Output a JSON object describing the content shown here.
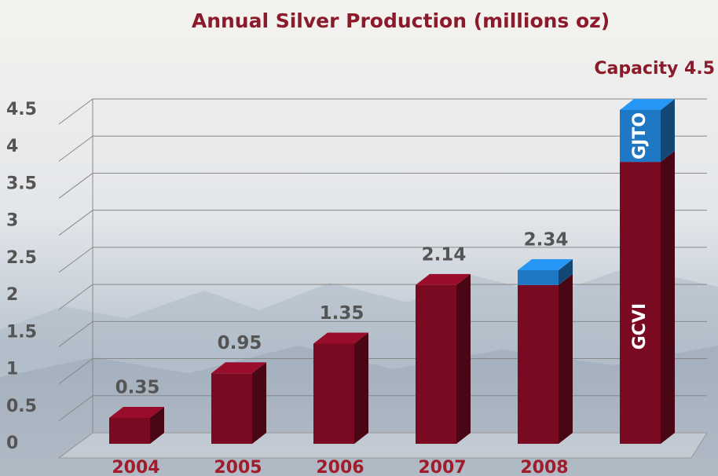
{
  "chart_data": {
    "type": "bar",
    "stacked": true,
    "title": "Annual Silver Production (millions oz)",
    "categories": [
      "2004",
      "2005",
      "2006",
      "2007",
      "2008",
      null
    ],
    "series": [
      {
        "name": "GCVI",
        "color": "#7a0a22",
        "values": [
          0.35,
          0.95,
          1.35,
          2.14,
          2.14,
          3.8
        ]
      },
      {
        "name": "GJTO",
        "color": "#1f78c4",
        "values": [
          null,
          null,
          null,
          null,
          0.2,
          0.7
        ]
      }
    ],
    "totals": [
      0.35,
      0.95,
      1.35,
      2.14,
      2.34,
      4.5
    ],
    "value_labels": [
      "0.35",
      "0.95",
      "1.35",
      "2.14",
      "2.34",
      "Capacity 4.5"
    ],
    "ylim": [
      0,
      4.5
    ],
    "yticks": [
      0,
      0.5,
      1,
      1.5,
      2,
      2.5,
      3,
      3.5,
      4,
      4.5
    ],
    "grid": true
  }
}
